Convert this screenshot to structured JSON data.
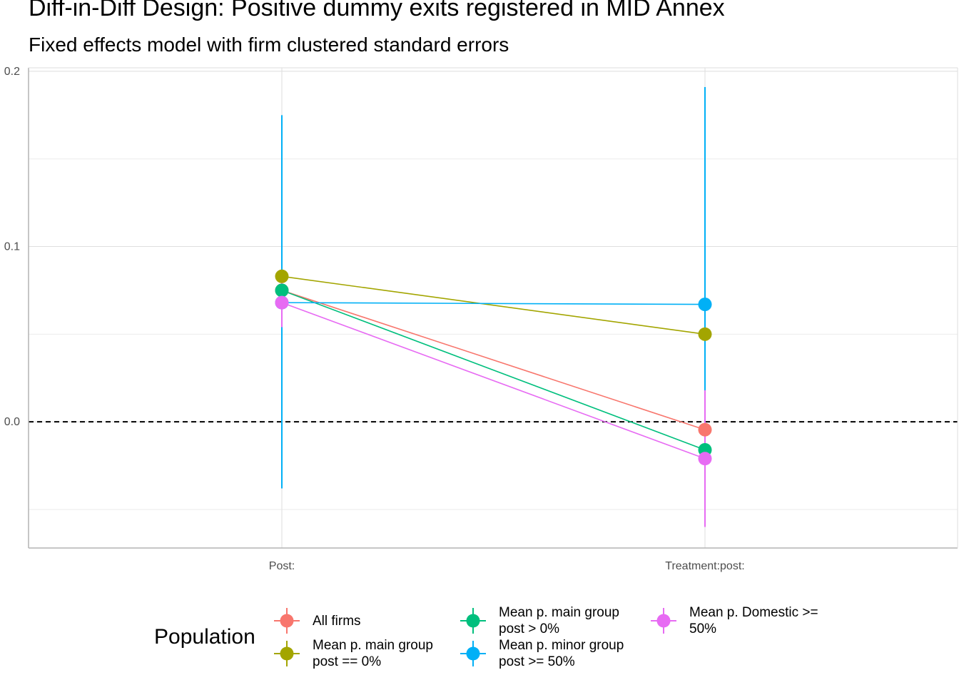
{
  "chart_data": {
    "type": "scatter",
    "title": "Diff-in-Diff Design: Positive dummy exits registered in MID Annex",
    "subtitle": "Fixed effects model with firm clustered standard errors",
    "categories": [
      "Post:",
      "Treatment:post:"
    ],
    "xlabel": "",
    "ylabel": "",
    "ylim": [
      -0.072,
      0.202
    ],
    "yticks": [
      0.0,
      0.1,
      0.2
    ],
    "yticklabels": [
      "0.0",
      "0.1",
      "0.2"
    ],
    "reference_line": {
      "y": 0.0,
      "style": "dashed"
    },
    "grid": true,
    "legend": {
      "title": "Population",
      "placement": "bottom"
    },
    "series": [
      {
        "name": "All firms",
        "color": "#F8766D",
        "values": [
          0.075,
          -0.0045
        ],
        "lower": [
          0.064,
          -0.026
        ],
        "upper": [
          0.086,
          0.017
        ]
      },
      {
        "name": "Mean p. main group post == 0%",
        "color": "#A3A500",
        "values": [
          0.083,
          0.05
        ],
        "lower": [
          0.071,
          0.04
        ],
        "upper": [
          0.095,
          0.06
        ]
      },
      {
        "name": "Mean p. main group post > 0%",
        "color": "#00BF7D",
        "values": [
          0.075,
          -0.016
        ],
        "lower": [
          0.063,
          -0.03
        ],
        "upper": [
          0.087,
          -0.002
        ]
      },
      {
        "name": "Mean p. minor group post >= 50%",
        "color": "#00B0F6",
        "values": [
          0.068,
          0.067
        ],
        "lower": [
          -0.038,
          -0.057
        ],
        "upper": [
          0.175,
          0.191
        ]
      },
      {
        "name": "Mean p. Domestic >= 50%",
        "color": "#E76BF3",
        "values": [
          0.068,
          -0.021
        ],
        "lower": [
          0.054,
          -0.06
        ],
        "upper": [
          0.082,
          0.018
        ]
      }
    ]
  },
  "legend_items": [
    {
      "label_lines": [
        "All firms"
      ]
    },
    {
      "label_lines": [
        "Mean p. main group",
        "post == 0%"
      ]
    },
    {
      "label_lines": [
        "Mean p. main group",
        "post > 0%"
      ]
    },
    {
      "label_lines": [
        "Mean p. minor group",
        "post >= 50%"
      ]
    },
    {
      "label_lines": [
        "Mean p. Domestic >=",
        "50%"
      ]
    }
  ]
}
